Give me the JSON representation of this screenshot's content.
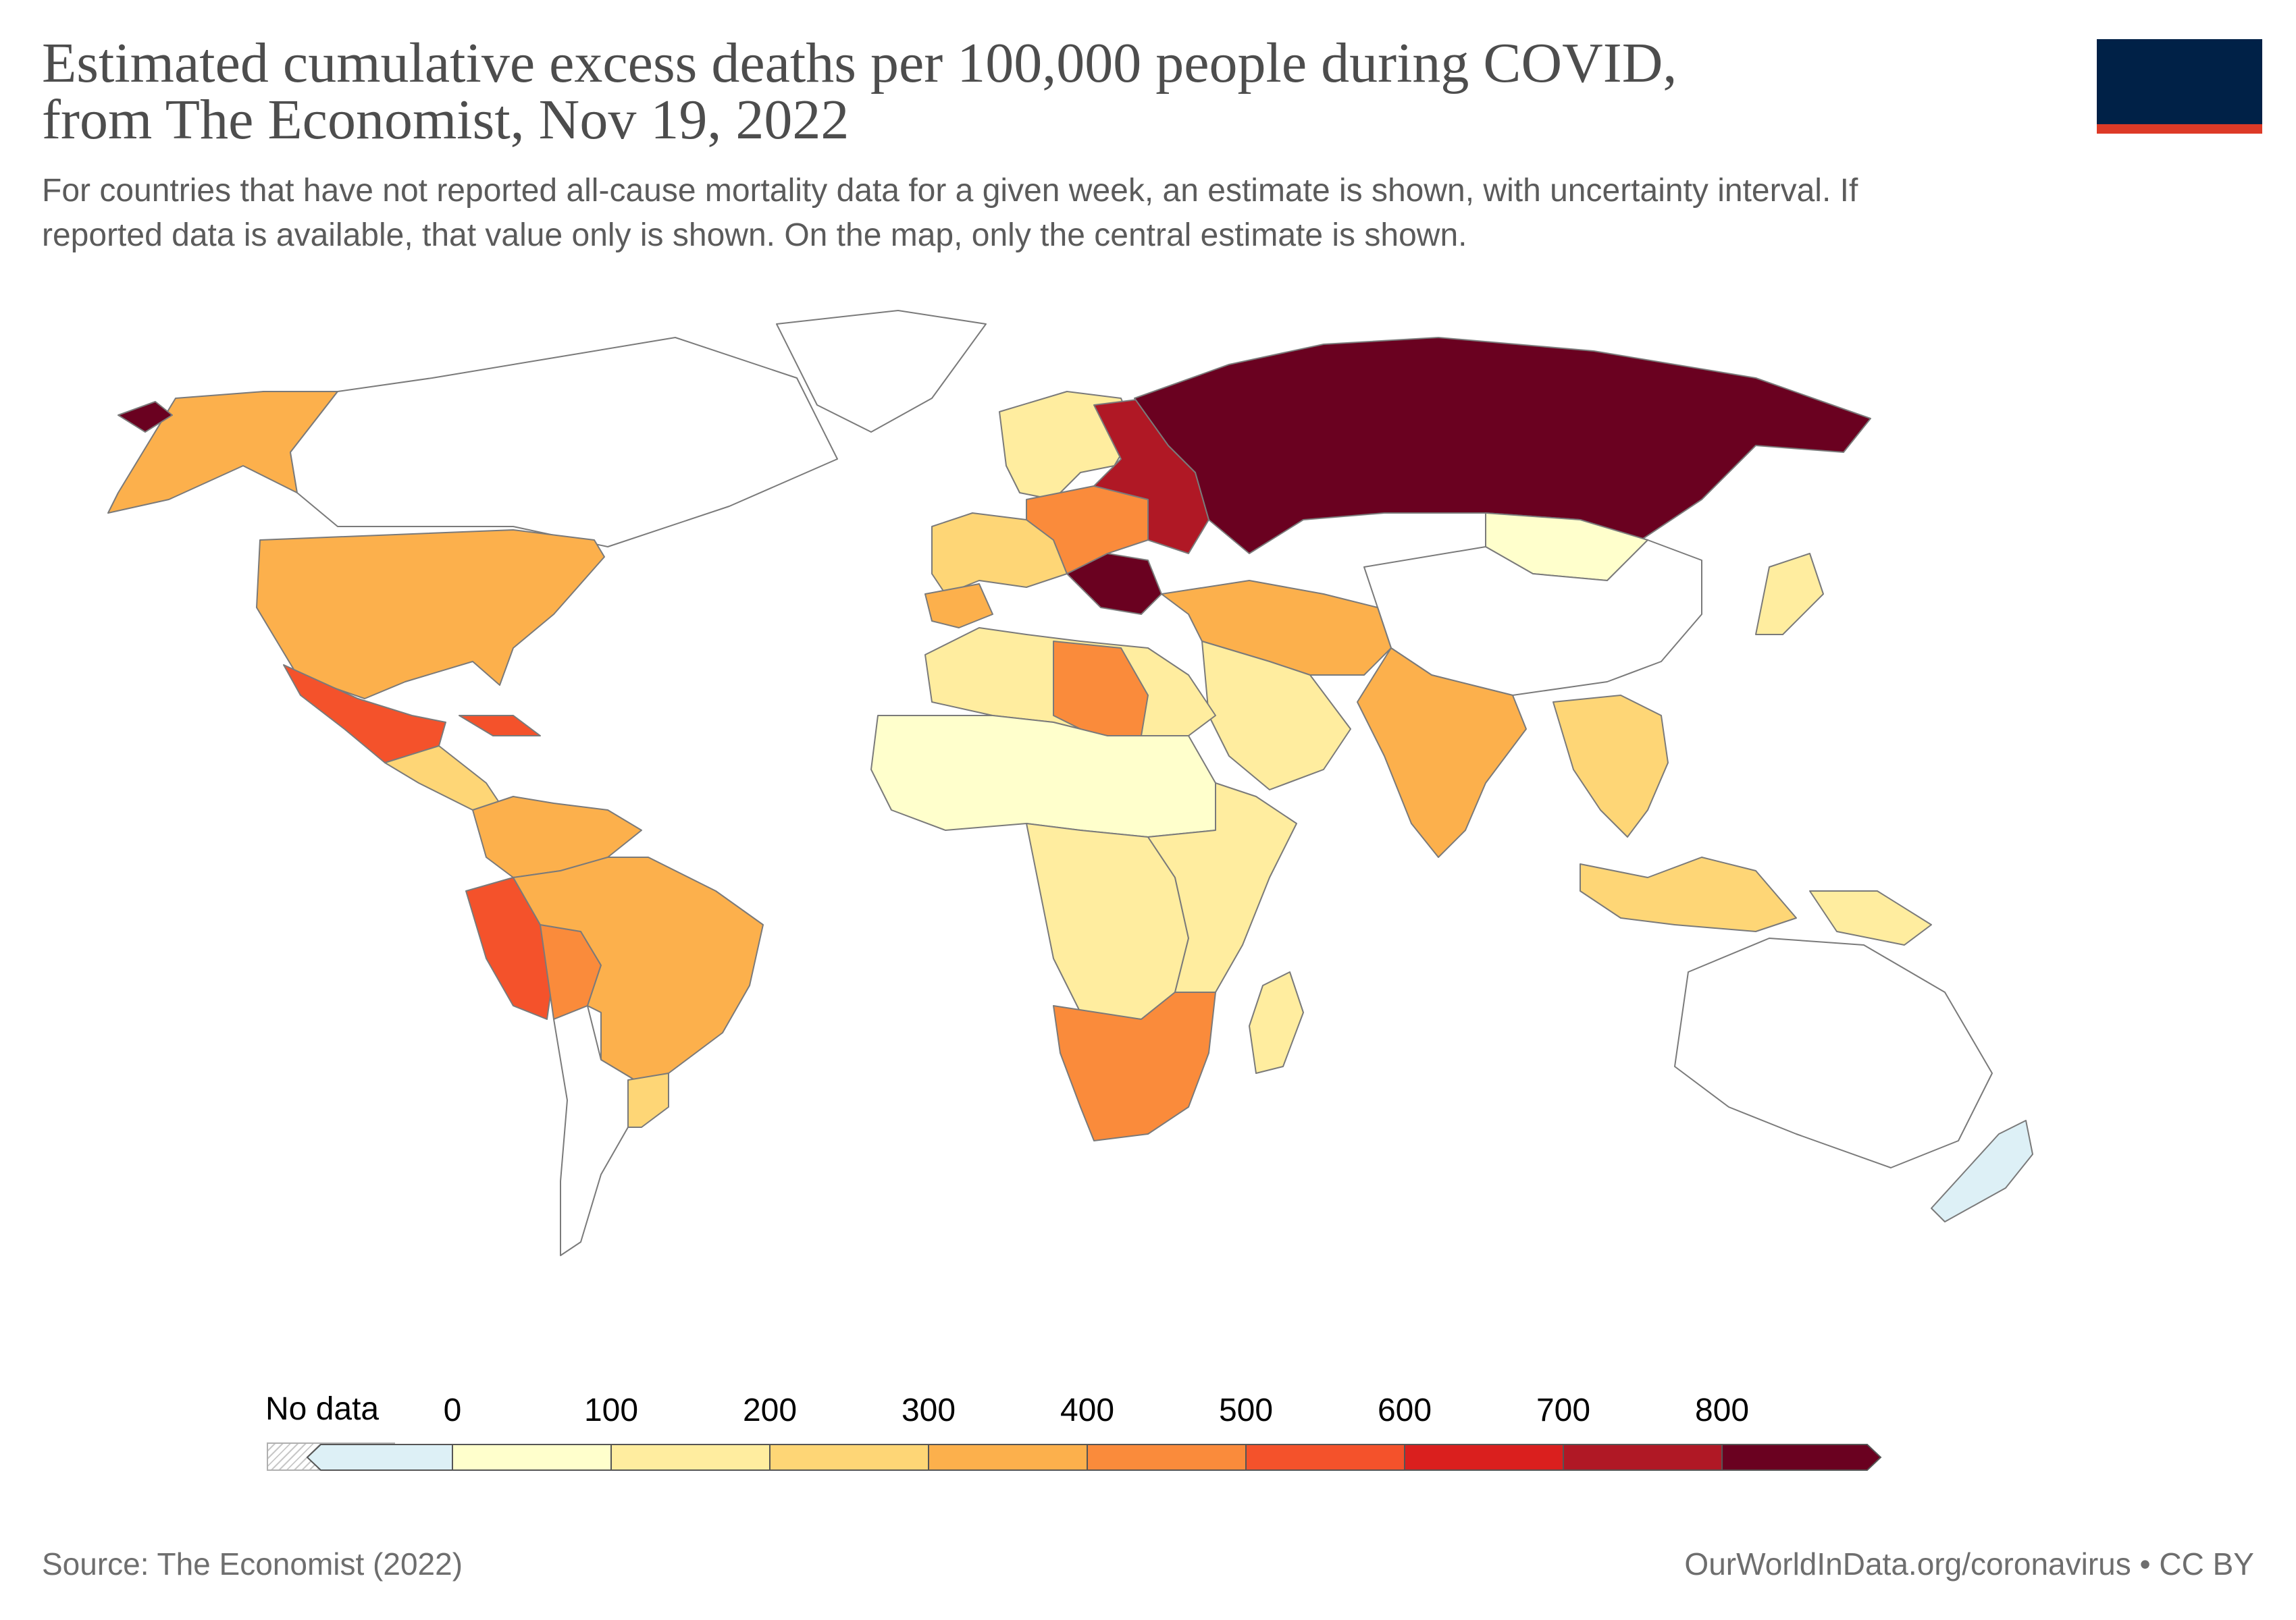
{
  "header": {
    "title_line1": "Estimated cumulative excess deaths per 100,000 people during COVID,",
    "title_line2": "from The Economist, Nov 19, 2022",
    "subtitle_line1": "For countries that have not reported all-cause mortality data for a given week, an estimate is shown, with uncertainty interval. If",
    "subtitle_line2": "reported data is available, that value only is shown. On the map, only the central estimate is shown."
  },
  "logo": {
    "name": "our-world-in-data-logo",
    "colors": {
      "top": "#002147",
      "bottom": "#dd3a27"
    }
  },
  "legend": {
    "no_data_label": "No data",
    "ticks": [
      "0",
      "100",
      "200",
      "300",
      "400",
      "500",
      "600",
      "700",
      "800"
    ],
    "bins": [
      {
        "min": null,
        "max": 0,
        "color": "#ddf0f6"
      },
      {
        "min": 0,
        "max": 100,
        "color": "#ffffcc"
      },
      {
        "min": 100,
        "max": 200,
        "color": "#ffed9f"
      },
      {
        "min": 200,
        "max": 300,
        "color": "#fed676"
      },
      {
        "min": 300,
        "max": 400,
        "color": "#fcb04c"
      },
      {
        "min": 400,
        "max": 500,
        "color": "#fa8b3b"
      },
      {
        "min": 500,
        "max": 600,
        "color": "#f4522b"
      },
      {
        "min": 600,
        "max": 700,
        "color": "#da1f1e"
      },
      {
        "min": 700,
        "max": 800,
        "color": "#b01825"
      },
      {
        "min": 800,
        "max": null,
        "color": "#6a0120"
      }
    ]
  },
  "regions": [
    {
      "name": "Alaska",
      "bin": 4
    },
    {
      "name": "Bering islands",
      "bin": 9
    },
    {
      "name": "Canada",
      "bin": null
    },
    {
      "name": "Greenland",
      "bin": null
    },
    {
      "name": "United States",
      "bin": 4
    },
    {
      "name": "Mexico",
      "bin": 6
    },
    {
      "name": "Central America",
      "bin": 3
    },
    {
      "name": "Cuba",
      "bin": 6
    },
    {
      "name": "Colombia / Venezuela",
      "bin": 4
    },
    {
      "name": "Peru",
      "bin": 6
    },
    {
      "name": "Bolivia",
      "bin": 5
    },
    {
      "name": "Brazil",
      "bin": 4
    },
    {
      "name": "Argentina",
      "bin": null
    },
    {
      "name": "Southern Cone",
      "bin": 3
    },
    {
      "name": "Western Europe",
      "bin": 3
    },
    {
      "name": "Iberia",
      "bin": 4
    },
    {
      "name": "Scandinavia",
      "bin": 2
    },
    {
      "name": "Central Europe",
      "bin": 5
    },
    {
      "name": "Eastern Europe",
      "bin": 8
    },
    {
      "name": "Balkans",
      "bin": 9
    },
    {
      "name": "Russia",
      "bin": 9
    },
    {
      "name": "Mongolia",
      "bin": 1
    },
    {
      "name": "China",
      "bin": null
    },
    {
      "name": "Japan",
      "bin": 2
    },
    {
      "name": "Middle East",
      "bin": 4
    },
    {
      "name": "Arabian Peninsula",
      "bin": 2
    },
    {
      "name": "India",
      "bin": 4
    },
    {
      "name": "Southeast Asia",
      "bin": 3
    },
    {
      "name": "Indonesia",
      "bin": 3
    },
    {
      "name": "Papua New Guinea",
      "bin": 2
    },
    {
      "name": "Australia",
      "bin": null
    },
    {
      "name": "New Zealand",
      "bin": 0
    },
    {
      "name": "North Africa",
      "bin": 2
    },
    {
      "name": "Libya",
      "bin": 5
    },
    {
      "name": "Sahel",
      "bin": 1
    },
    {
      "name": "Central Africa",
      "bin": 2
    },
    {
      "name": "East Africa",
      "bin": 2
    },
    {
      "name": "Southern Africa",
      "bin": 5
    },
    {
      "name": "Madagascar",
      "bin": 2
    }
  ],
  "footer": {
    "source": "Source: The Economist (2022)",
    "credit": "OurWorldInData.org/coronavirus • CC BY"
  }
}
